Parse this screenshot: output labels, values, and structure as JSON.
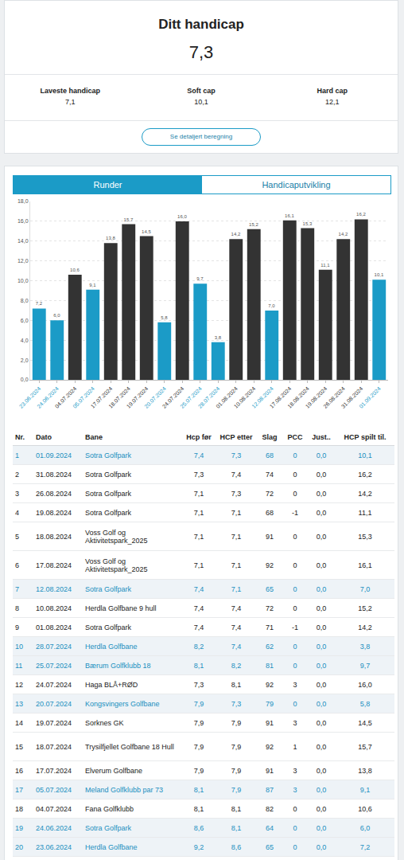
{
  "header": {
    "title": "Ditt handicap",
    "value": "7,3",
    "stats": [
      {
        "label": "Laveste handicap",
        "value": "7,1"
      },
      {
        "label": "Soft cap",
        "value": "10,1"
      },
      {
        "label": "Hard cap",
        "value": "12,1"
      }
    ],
    "button": "Se detaljert beregning"
  },
  "tabs": [
    {
      "label": "Runder",
      "active": true
    },
    {
      "label": "Handicaputvikling",
      "active": false
    }
  ],
  "chart_data": {
    "type": "bar",
    "categories": [
      "23.06.2024",
      "24.06.2024",
      "04.07.2024",
      "05.07.2024",
      "17.07.2024",
      "18.07.2024",
      "19.07.2024",
      "20.07.2024",
      "24.07.2024",
      "25.07.2024",
      "28.07.2024",
      "01.08.2024",
      "10.08.2024",
      "12.08.2024",
      "17.08.2024",
      "18.08.2024",
      "19.08.2024",
      "26.08.2024",
      "31.08.2024",
      "01.09.2024"
    ],
    "values": [
      7.2,
      6.0,
      10.6,
      9.1,
      13.8,
      15.7,
      14.5,
      5.8,
      16.0,
      9.7,
      3.8,
      14.2,
      15.2,
      7.0,
      16.1,
      15.3,
      11.1,
      14.2,
      16.2,
      10.1
    ],
    "value_labels": [
      "7,2",
      "6,0",
      "10,6",
      "9,1",
      "13,8",
      "15,7",
      "14,5",
      "5,8",
      "16,0",
      "9,7",
      "3,8",
      "14,2",
      "15,2",
      "7,0",
      "16,1",
      "15,3",
      "11,1",
      "14,2",
      "16,2",
      "10,1"
    ],
    "colors": [
      "#1b9bc7",
      "#1b9bc7",
      "#333333",
      "#1b9bc7",
      "#333333",
      "#333333",
      "#333333",
      "#1b9bc7",
      "#333333",
      "#1b9bc7",
      "#1b9bc7",
      "#333333",
      "#333333",
      "#1b9bc7",
      "#333333",
      "#333333",
      "#333333",
      "#333333",
      "#333333",
      "#1b9bc7"
    ],
    "ylim": [
      0,
      18
    ],
    "yticks": [
      {
        "value": 0,
        "label": "0,0"
      },
      {
        "value": 2,
        "label": "2,0"
      },
      {
        "value": 4,
        "label": "4,0"
      },
      {
        "value": 6,
        "label": "6,0"
      },
      {
        "value": 8,
        "label": "8,0"
      },
      {
        "value": 10,
        "label": "10,0"
      },
      {
        "value": 12,
        "label": "12,0"
      },
      {
        "value": 14,
        "label": "14,0"
      },
      {
        "value": 16,
        "label": "16,0"
      },
      {
        "value": 18,
        "label": "18,0"
      }
    ],
    "grid": true,
    "data_labels": true
  },
  "table": {
    "columns": [
      "Nr.",
      "Dato",
      "Bane",
      "Hcp før",
      "HCP etter",
      "Slag",
      "PCC",
      "Just..",
      "HCP spilt til."
    ],
    "rows": [
      {
        "cells": [
          "1",
          "01.09.2024",
          "Sotra Golfpark",
          "7,4",
          "7,3",
          "68",
          "0",
          "0,0",
          "10,1"
        ],
        "color": "#1a8fc0"
      },
      {
        "cells": [
          "2",
          "31.08.2024",
          "Sotra Golfpark",
          "7,3",
          "7,4",
          "74",
          "0",
          "0,0",
          "16,2"
        ]
      },
      {
        "cells": [
          "3",
          "26.08.2024",
          "Sotra Golfpark",
          "7,1",
          "7,3",
          "72",
          "0",
          "0,0",
          "14,2"
        ]
      },
      {
        "cells": [
          "4",
          "19.08.2024",
          "Sotra Golfpark",
          "7,1",
          "7,1",
          "68",
          "-1",
          "0,0",
          "11,1"
        ]
      },
      {
        "cells": [
          "5",
          "18.08.2024",
          "Voss Golf og Aktivitetspark_2025",
          "7,1",
          "7,1",
          "91",
          "0",
          "0,0",
          "15,3"
        ]
      },
      {
        "cells": [
          "6",
          "17.08.2024",
          "Voss Golf og Aktivitetspark_2025",
          "7,1",
          "7,1",
          "92",
          "0",
          "0,0",
          "16,1"
        ]
      },
      {
        "cells": [
          "7",
          "12.08.2024",
          "Sotra Golfpark",
          "7,4",
          "7,1",
          "65",
          "0",
          "0,0",
          "7,0"
        ],
        "color": "#1a8fc0"
      },
      {
        "cells": [
          "8",
          "10.08.2024",
          "Herdla Golfbane 9 hull",
          "7,4",
          "7,4",
          "72",
          "0",
          "0,0",
          "15,2"
        ]
      },
      {
        "cells": [
          "9",
          "01.08.2024",
          "Sotra Golfpark",
          "7,4",
          "7,4",
          "71",
          "-1",
          "0,0",
          "14,2"
        ]
      },
      {
        "cells": [
          "10",
          "28.07.2024",
          "Herdla Golfbane",
          "8,2",
          "7,4",
          "62",
          "0",
          "0,0",
          "3,8"
        ],
        "color": "#1a8fc0"
      },
      {
        "cells": [
          "11",
          "25.07.2024",
          "Bærum Golfklubb 18",
          "8,1",
          "8,2",
          "81",
          "0",
          "0,0",
          "9,7"
        ],
        "color": "#1a8fc0"
      },
      {
        "cells": [
          "12",
          "24.07.2024",
          "Haga BLÅ+RØD",
          "7,3",
          "8,1",
          "92",
          "3",
          "0,0",
          "16,0"
        ]
      },
      {
        "cells": [
          "13",
          "20.07.2024",
          "Kongsvingers Golfbane",
          "7,9",
          "7,3",
          "79",
          "0",
          "0,0",
          "5,8"
        ],
        "color": "#1a8fc0"
      },
      {
        "cells": [
          "14",
          "19.07.2024",
          "Sorknes GK",
          "7,9",
          "7,9",
          "91",
          "3",
          "0,0",
          "14,5"
        ]
      },
      {
        "cells": [
          "15",
          "18.07.2024",
          "Trysilfjellet Golfbane 18 Hull",
          "7,9",
          "7,9",
          "92",
          "1",
          "0,0",
          "15,7"
        ]
      },
      {
        "cells": [
          "16",
          "17.07.2024",
          "Elverum Golfbane",
          "7,9",
          "7,9",
          "91",
          "3",
          "0,0",
          "13,8"
        ]
      },
      {
        "cells": [
          "17",
          "05.07.2024",
          "Meland Golfklubb par 73",
          "8,1",
          "7,9",
          "87",
          "3",
          "0,0",
          "9,1"
        ],
        "color": "#1a8fc0"
      },
      {
        "cells": [
          "18",
          "04.07.2024",
          "Fana Golfklubb",
          "8,1",
          "8,1",
          "82",
          "0",
          "0,0",
          "10,6"
        ]
      },
      {
        "cells": [
          "19",
          "24.06.2024",
          "Sotra Golfpark",
          "8,6",
          "8,1",
          "64",
          "0",
          "0,0",
          "6,0"
        ],
        "color": "#1a8fc0"
      },
      {
        "cells": [
          "20",
          "23.06.2024",
          "Herdla Golfbane",
          "9,2",
          "8,6",
          "65",
          "0",
          "0,0",
          "7,2"
        ],
        "color": "#1a8fc0"
      }
    ]
  }
}
